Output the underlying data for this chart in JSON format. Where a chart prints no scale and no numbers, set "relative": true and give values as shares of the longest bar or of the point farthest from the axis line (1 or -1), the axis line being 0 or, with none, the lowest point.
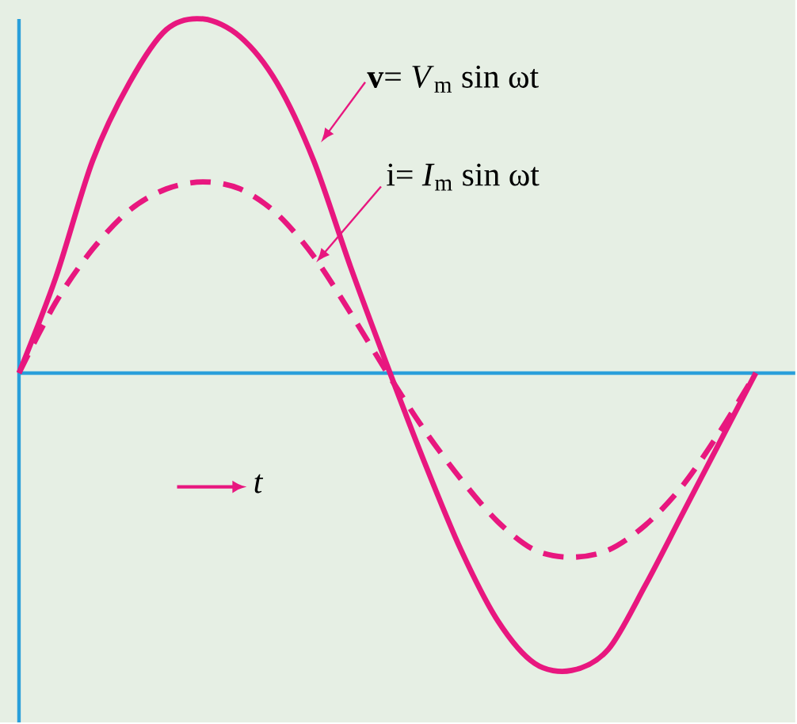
{
  "chart_data": {
    "type": "line",
    "relative": true,
    "categories": [
      null,
      null,
      null,
      null,
      null,
      null,
      null,
      null,
      null,
      null,
      null,
      null,
      null,
      null,
      null,
      null,
      null,
      null,
      null,
      null,
      null
    ],
    "series": [
      {
        "color": "#e8177f",
        "line_style": "solid",
        "values": [
          0,
          0.27,
          0.6,
          0.82,
          0.97,
          1.0,
          0.95,
          0.82,
          0.6,
          0.3,
          0.02,
          -0.25,
          -0.5,
          -0.7,
          -0.82,
          -0.84,
          -0.78,
          -0.6,
          -0.4,
          -0.2,
          0
        ]
      },
      {
        "color": "#e8177f",
        "line_style": "dashed",
        "values": [
          0,
          0.2,
          0.35,
          0.46,
          0.52,
          0.54,
          0.52,
          0.45,
          0.33,
          0.17,
          0,
          -0.16,
          -0.3,
          -0.42,
          -0.5,
          -0.52,
          -0.5,
          -0.43,
          -0.32,
          -0.17,
          0
        ]
      }
    ],
    "ref_lines": [
      {
        "axis": "y",
        "value": 0,
        "color": "#2a9fda"
      }
    ],
    "annotations": [
      "**v**= *V*$_{m}$ sin ωt",
      "i= *I*$_{m}$ sin ωt",
      "*t*"
    ]
  }
}
